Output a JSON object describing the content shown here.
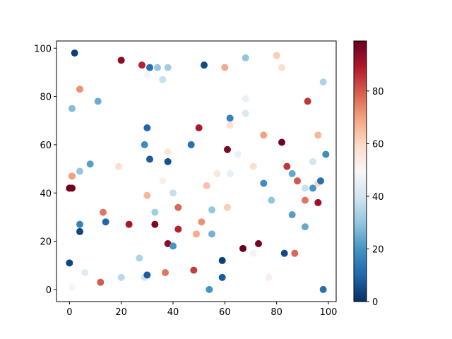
{
  "chart_data": {
    "type": "scatter",
    "xlim": [
      -5,
      103
    ],
    "ylim": [
      -5,
      103
    ],
    "x_ticks": [
      0,
      20,
      40,
      60,
      80,
      100
    ],
    "y_ticks": [
      0,
      20,
      40,
      60,
      80,
      100
    ],
    "grid": false,
    "colormap": "RdBu_r",
    "colorbar": {
      "range": [
        0,
        99
      ],
      "ticks": [
        0,
        20,
        40,
        60,
        80
      ],
      "low_color": "#053061",
      "mid_color": "#f7f7f7",
      "high_color": "#67001f"
    },
    "points": [
      [
        2,
        98,
        3
      ],
      [
        20,
        95,
        94
      ],
      [
        28,
        93,
        88
      ],
      [
        31,
        92,
        12
      ],
      [
        34,
        92,
        30
      ],
      [
        38,
        92,
        32
      ],
      [
        52,
        93,
        5
      ],
      [
        60,
        92,
        68
      ],
      [
        68,
        96,
        30
      ],
      [
        80,
        97,
        62
      ],
      [
        82,
        92,
        58
      ],
      [
        36,
        87,
        38
      ],
      [
        30,
        89,
        50
      ],
      [
        98,
        86,
        34
      ],
      [
        4,
        83,
        72
      ],
      [
        11,
        78,
        25
      ],
      [
        68,
        79,
        46
      ],
      [
        92,
        78,
        85
      ],
      [
        1,
        75,
        28
      ],
      [
        68,
        73,
        42
      ],
      [
        62,
        71,
        16
      ],
      [
        30,
        67,
        10
      ],
      [
        50,
        67,
        90
      ],
      [
        62,
        68,
        57
      ],
      [
        29,
        60,
        18
      ],
      [
        47,
        60,
        12
      ],
      [
        75,
        64,
        70
      ],
      [
        82,
        61,
        98
      ],
      [
        96,
        64,
        66
      ],
      [
        38,
        57,
        56
      ],
      [
        61,
        58,
        96
      ],
      [
        65,
        56,
        46
      ],
      [
        99,
        56,
        18
      ],
      [
        31,
        54,
        8
      ],
      [
        38,
        53,
        6
      ],
      [
        8,
        52,
        22
      ],
      [
        19,
        51,
        58
      ],
      [
        71,
        51,
        58
      ],
      [
        84,
        51,
        85
      ],
      [
        94,
        53,
        40
      ],
      [
        1,
        47,
        70
      ],
      [
        4,
        49,
        30
      ],
      [
        36,
        45,
        52
      ],
      [
        57,
        48,
        55
      ],
      [
        62,
        48,
        45
      ],
      [
        86,
        48,
        24
      ],
      [
        88,
        45,
        80
      ],
      [
        0,
        42,
        99
      ],
      [
        1,
        42,
        98
      ],
      [
        40,
        40,
        38
      ],
      [
        53,
        43,
        64
      ],
      [
        75,
        44,
        18
      ],
      [
        91,
        42,
        38
      ],
      [
        94,
        42,
        20
      ],
      [
        96,
        44,
        60
      ],
      [
        97,
        45,
        12
      ],
      [
        30,
        39,
        66
      ],
      [
        61,
        34,
        62
      ],
      [
        78,
        37,
        30
      ],
      [
        91,
        37,
        76
      ],
      [
        96,
        36,
        92
      ],
      [
        13,
        32,
        76
      ],
      [
        33,
        32,
        32
      ],
      [
        42,
        34,
        78
      ],
      [
        55,
        33,
        30
      ],
      [
        86,
        31,
        22
      ],
      [
        4,
        27,
        16
      ],
      [
        14,
        28,
        10
      ],
      [
        23,
        27,
        90
      ],
      [
        33,
        27,
        96
      ],
      [
        42,
        25,
        88
      ],
      [
        51,
        28,
        72
      ],
      [
        91,
        26,
        24
      ],
      [
        4,
        24,
        4
      ],
      [
        49,
        23,
        68
      ],
      [
        55,
        23,
        26
      ],
      [
        38,
        19,
        94
      ],
      [
        40,
        18,
        20
      ],
      [
        67,
        17,
        99
      ],
      [
        73,
        19,
        97
      ],
      [
        71,
        15,
        48
      ],
      [
        83,
        15,
        5
      ],
      [
        87,
        15,
        78
      ],
      [
        0,
        11,
        4
      ],
      [
        27,
        13,
        34
      ],
      [
        59,
        12,
        3
      ],
      [
        6,
        7,
        44
      ],
      [
        37,
        7,
        76
      ],
      [
        48,
        8,
        84
      ],
      [
        12,
        3,
        80
      ],
      [
        20,
        5,
        36
      ],
      [
        29,
        5,
        40
      ],
      [
        30,
        6,
        8
      ],
      [
        59,
        5,
        8
      ],
      [
        77,
        5,
        52
      ],
      [
        1,
        1,
        50
      ],
      [
        54,
        0,
        20
      ],
      [
        98,
        0,
        12
      ]
    ]
  }
}
